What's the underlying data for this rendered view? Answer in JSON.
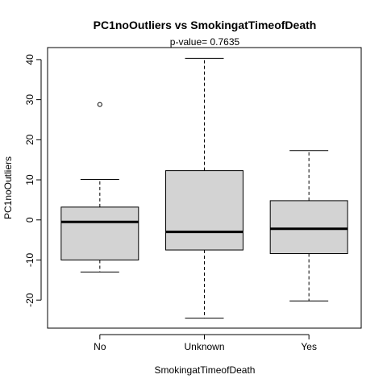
{
  "chart_data": {
    "type": "box",
    "title": "PC1noOutliers  vs  SmokingatTimeofDeath",
    "subtitle": "p-value= 0.7635",
    "xlabel": "SmokingatTimeofDeath",
    "ylabel": "PC1noOutliers",
    "ylim": [
      -27,
      43
    ],
    "yticks": [
      -20,
      -10,
      0,
      10,
      20,
      30,
      40
    ],
    "categories": [
      "No",
      "Unknown",
      "Yes"
    ],
    "boxes": [
      {
        "category": "No",
        "min": -13.0,
        "q1": -10.0,
        "median": -0.5,
        "q3": 3.2,
        "max": 10.1,
        "outliers": [
          28.8
        ]
      },
      {
        "category": "Unknown",
        "min": -24.5,
        "q1": -7.5,
        "median": -3.0,
        "q3": 12.3,
        "max": 40.3,
        "outliers": []
      },
      {
        "category": "Yes",
        "min": -20.2,
        "q1": -8.4,
        "median": -2.2,
        "q3": 4.8,
        "max": 17.3,
        "outliers": []
      }
    ],
    "box_fill": "#d3d3d3",
    "line_color": "#000000",
    "grid": false,
    "legend": "none"
  }
}
